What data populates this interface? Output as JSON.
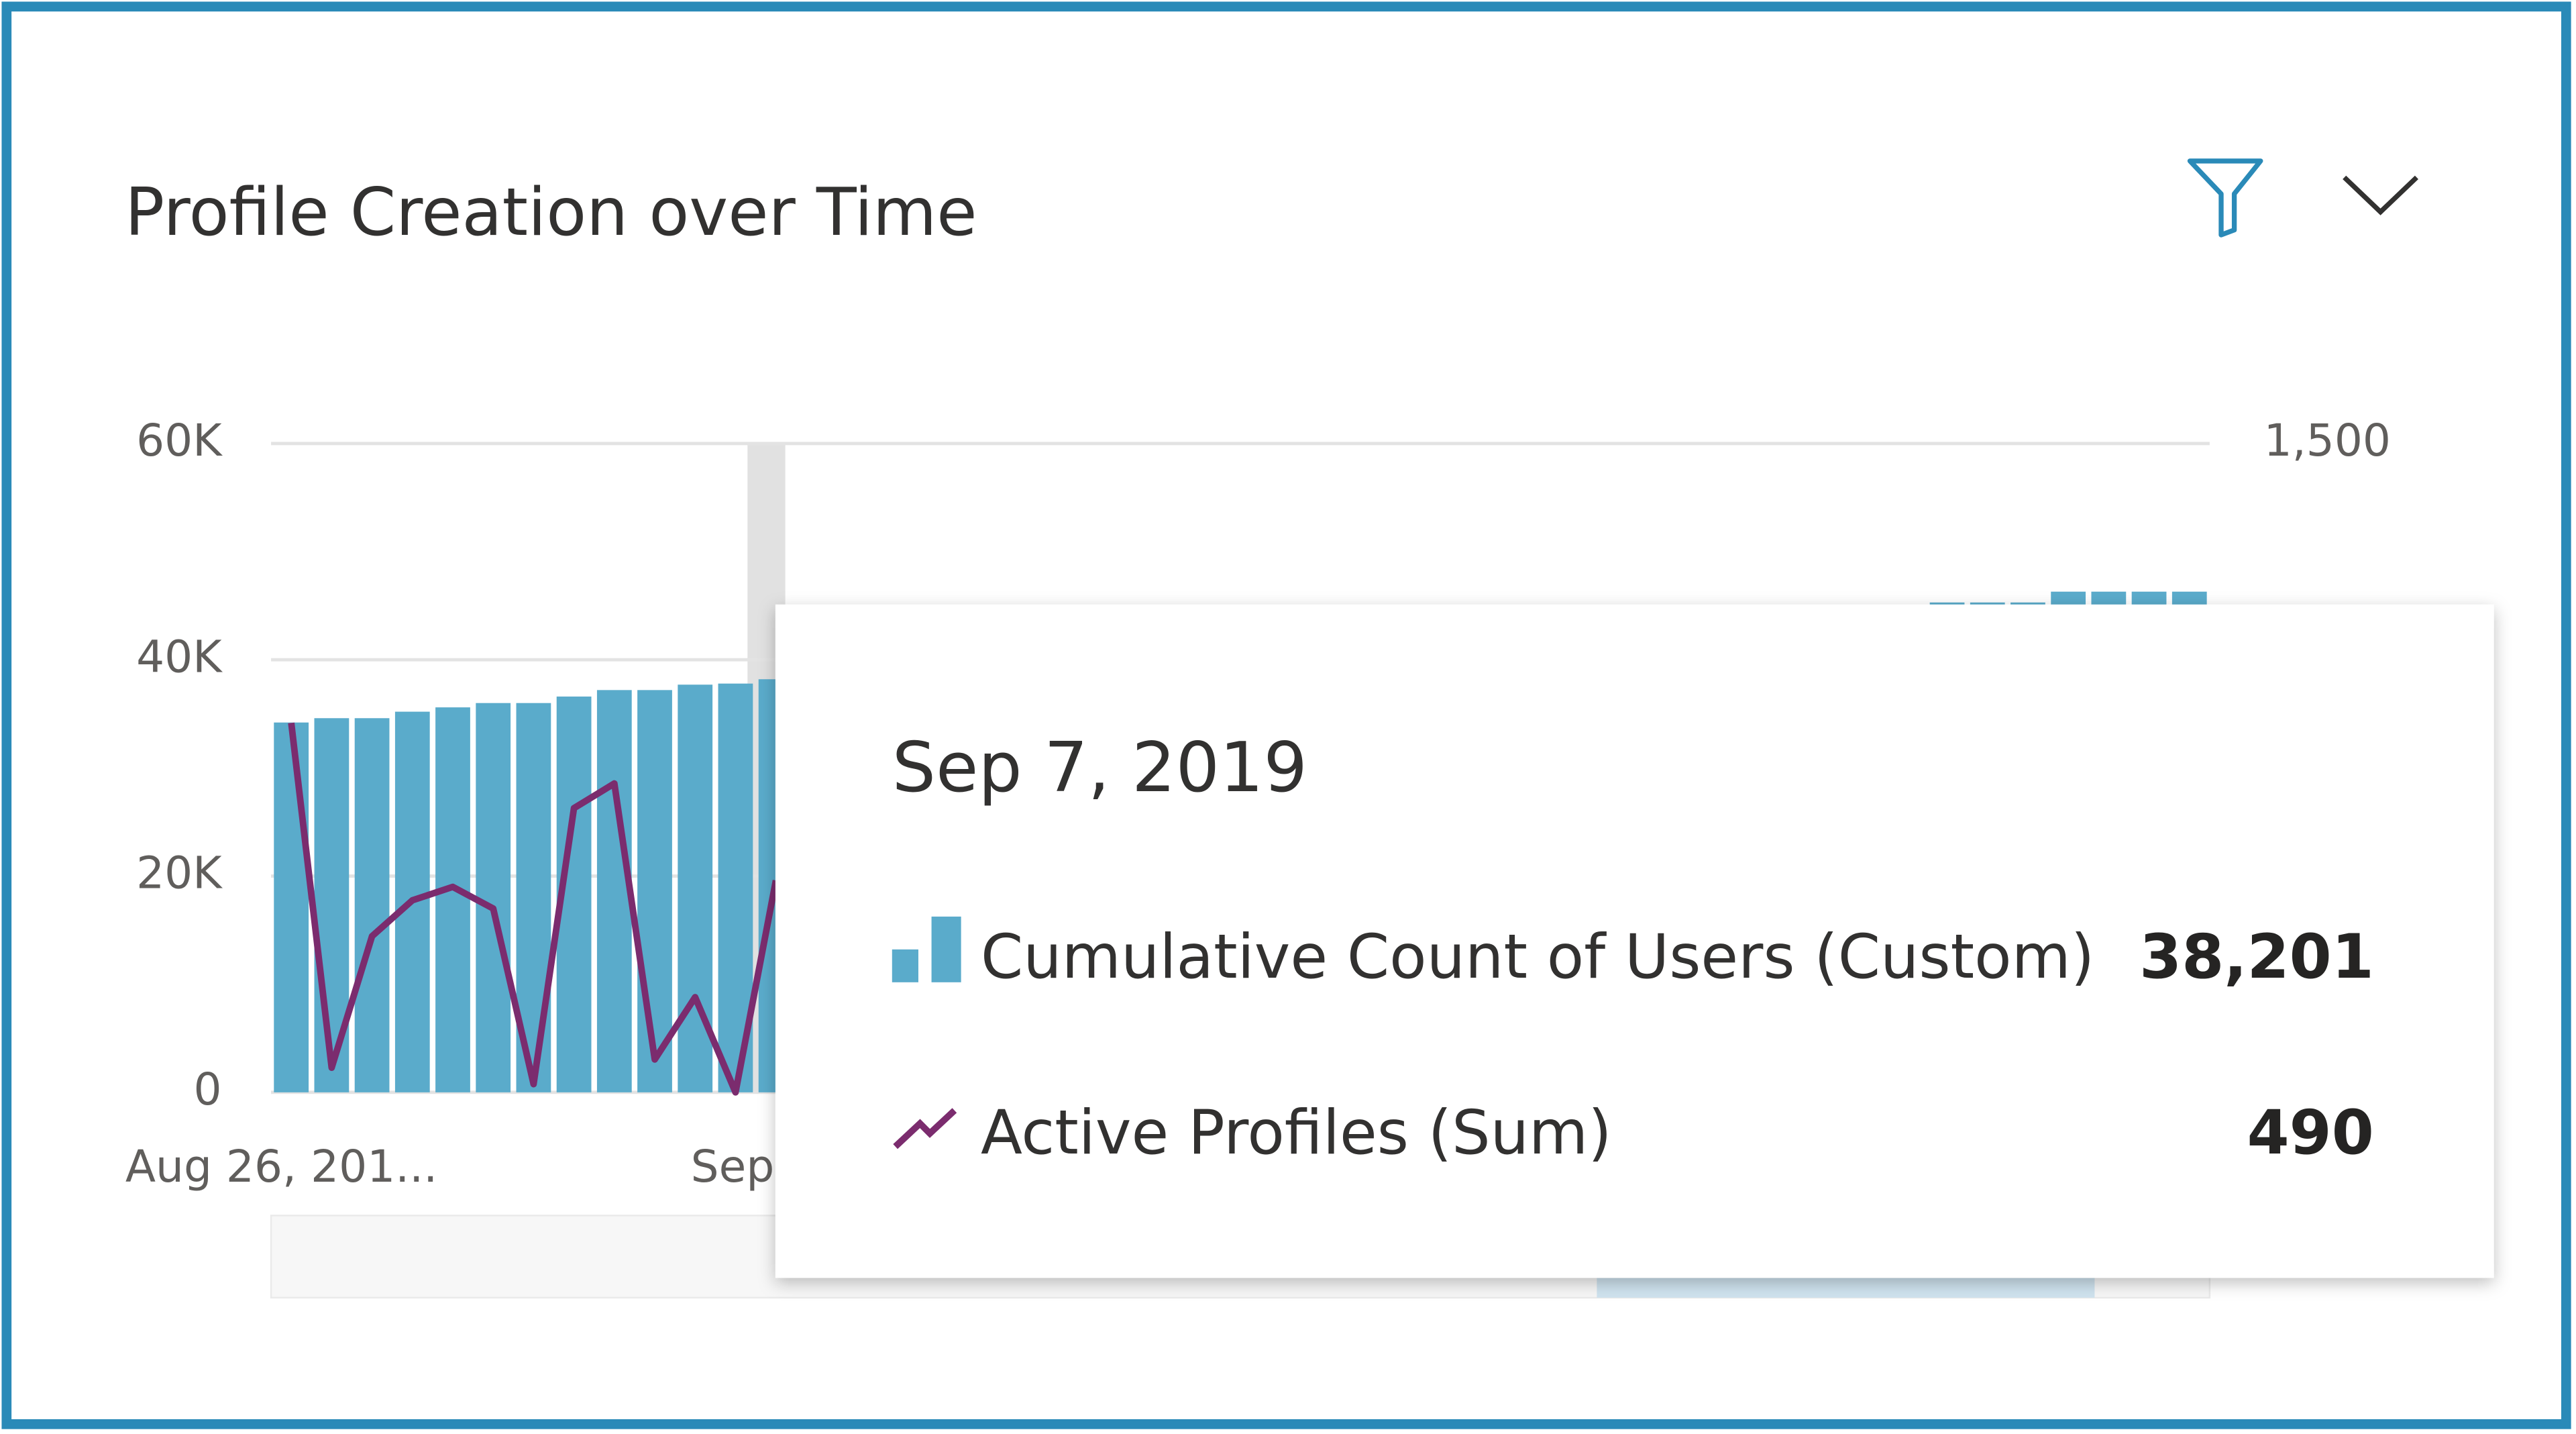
{
  "chart_data": {
    "type": "bar-line",
    "title": "Profile Creation over Time",
    "categories": [
      "Aug 26, 201...",
      null,
      null,
      null,
      null,
      null,
      null,
      null,
      null,
      null,
      null,
      null,
      null,
      null,
      "Sep",
      null,
      null,
      null,
      null,
      null,
      null,
      null,
      null,
      null,
      null,
      null,
      null,
      null,
      null,
      null,
      null,
      null,
      null,
      null,
      null,
      null,
      null,
      null,
      null,
      null,
      null,
      null,
      null,
      null,
      null,
      null,
      null,
      null
    ],
    "series": [
      {
        "name": "Cumulative Count of Users (Custom)",
        "color": "#5aabcb",
        "values": [
          34200,
          34600,
          34600,
          35200,
          35600,
          36000,
          36000,
          36600,
          37200,
          37200,
          37700,
          37800,
          38201,
          null,
          null,
          null,
          null,
          null,
          null,
          null,
          null,
          null,
          null,
          null,
          null,
          null,
          null,
          null,
          null,
          null,
          null,
          null,
          null,
          null,
          null,
          null,
          null,
          null,
          null,
          null,
          null,
          45300,
          45300,
          45300,
          46300,
          46300,
          46300,
          46300
        ],
        "value_labels": [
          null,
          null,
          null,
          null,
          null,
          null,
          null,
          null,
          null,
          null,
          null,
          null,
          "38,201",
          null,
          null,
          null,
          null,
          null,
          null,
          null,
          null,
          null,
          null,
          null,
          null,
          null,
          null,
          null,
          null,
          null,
          null,
          null,
          null,
          null,
          null,
          null,
          null,
          null,
          null,
          null,
          null,
          null,
          null,
          null,
          null,
          null,
          null,
          null
        ]
      },
      {
        "name": "Active Profiles (Sum)",
        "color": "#7b2c6e",
        "axis": "y2",
        "values": [
          854,
          57,
          361,
          444,
          475,
          425,
          19,
          657,
          714,
          76,
          220,
          0,
          490,
          null,
          null,
          null,
          null,
          null,
          null,
          null,
          null,
          null,
          null,
          null,
          null,
          null,
          null,
          null,
          null,
          null,
          null,
          null,
          null,
          null,
          null,
          null,
          null,
          null,
          null,
          null,
          null,
          null,
          null,
          null,
          null,
          null,
          null,
          null
        ],
        "value_labels": [
          null,
          null,
          null,
          null,
          null,
          null,
          null,
          null,
          null,
          null,
          null,
          null,
          "490",
          null,
          null,
          null,
          null,
          null,
          null,
          null,
          null,
          null,
          null,
          null,
          null,
          null,
          null,
          null,
          null,
          null,
          null,
          null,
          null,
          null,
          null,
          null,
          null,
          null,
          null,
          null,
          null,
          null,
          null,
          null,
          null,
          null,
          null,
          null
        ]
      }
    ],
    "ylim": [
      0,
      60000
    ],
    "yticks": [
      0,
      {
        "value": 20000,
        "label": "20K"
      },
      {
        "value": 40000,
        "label": "40K"
      },
      {
        "value": 60000,
        "label": "60K"
      }
    ],
    "y2lim": [
      0,
      1500
    ],
    "y2ticks": [
      {
        "value": 1500,
        "label": "1,500"
      }
    ],
    "grid": true,
    "tooltip_title": "Sep 7, 2019"
  }
}
